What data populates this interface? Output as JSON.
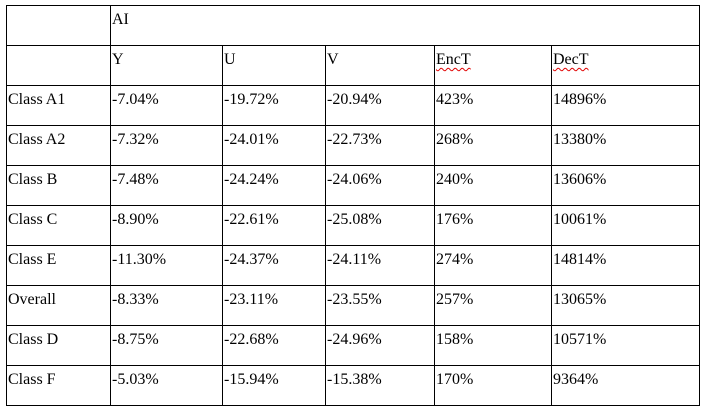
{
  "table": {
    "group": "AI",
    "columns": [
      "Y",
      "U",
      "V",
      "EncT",
      "DecT"
    ],
    "rows": [
      [
        "Class A1",
        "-7.04%",
        "-19.72%",
        "-20.94%",
        "423%",
        "14896%"
      ],
      [
        "Class A2",
        "-7.32%",
        "-24.01%",
        "-22.73%",
        "268%",
        "13380%"
      ],
      [
        "Class B",
        "-7.48%",
        "-24.24%",
        "-24.06%",
        "240%",
        "13606%"
      ],
      [
        "Class C",
        "-8.90%",
        "-22.61%",
        "-25.08%",
        "176%",
        "10061%"
      ],
      [
        "Class E",
        "-11.30%",
        "-24.37%",
        "-24.11%",
        "274%",
        "14814%"
      ],
      [
        "Overall",
        "-8.33%",
        "-23.11%",
        "-23.55%",
        "257%",
        "13065%"
      ],
      [
        "Class D",
        "-8.75%",
        "-22.68%",
        "-24.96%",
        "158%",
        "10571%"
      ],
      [
        "Class F",
        "-5.03%",
        "-15.94%",
        "-15.38%",
        "170%",
        "9364%"
      ]
    ]
  }
}
